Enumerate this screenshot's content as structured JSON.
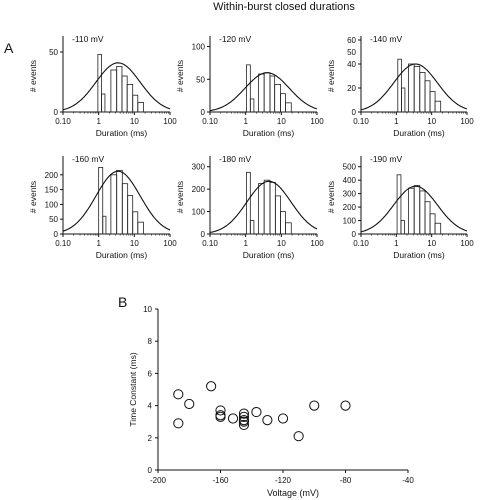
{
  "figure": {
    "title": "Within-burst closed durations"
  },
  "panel_labels": {
    "a": "A",
    "b": "B"
  },
  "chart_data": [
    {
      "type": "bar",
      "panel": "A1",
      "annotation": "-110 mV",
      "xlabel": "Duration (ms)",
      "ylabel": "# events",
      "x_scale": "log",
      "xlim": [
        0.1,
        100
      ],
      "x_ticks": [
        "0.10",
        "1",
        "10",
        "100"
      ],
      "ylim": [
        0,
        60
      ],
      "y_ticks": [
        0,
        50
      ],
      "bins": [
        [
          0.95,
          1.2,
          48
        ],
        [
          1.2,
          1.5,
          15
        ],
        [
          2.2,
          3.2,
          35
        ],
        [
          3.2,
          4.5,
          38
        ],
        [
          4.5,
          6.3,
          30
        ],
        [
          6.3,
          9,
          23
        ],
        [
          9,
          12.5,
          14
        ],
        [
          12.5,
          18,
          8
        ]
      ],
      "fit_curve": {
        "peak_x": 3.5,
        "peak_y": 41,
        "log_width": 0.62
      }
    },
    {
      "type": "bar",
      "panel": "A2",
      "annotation": "-120 mV",
      "xlabel": "Duration (ms)",
      "ylabel": "# events",
      "x_scale": "log",
      "xlim": [
        0.1,
        100
      ],
      "x_ticks": [
        "0.10",
        "1",
        "10",
        "100"
      ],
      "ylim": [
        0,
        110
      ],
      "y_ticks": [
        0,
        50,
        100
      ],
      "bins": [
        [
          1.05,
          1.35,
          72
        ],
        [
          1.35,
          1.7,
          20
        ],
        [
          2.3,
          3.3,
          58
        ],
        [
          3.3,
          4.8,
          60
        ],
        [
          4.8,
          6.5,
          55
        ],
        [
          6.5,
          9.5,
          42
        ],
        [
          9.5,
          13,
          28
        ],
        [
          13,
          19,
          14
        ]
      ],
      "fit_curve": {
        "peak_x": 4,
        "peak_y": 60,
        "log_width": 0.62
      }
    },
    {
      "type": "bar",
      "panel": "A3",
      "annotation": "-140 mV",
      "xlabel": "Duration (ms)",
      "ylabel": "# events",
      "x_scale": "log",
      "xlim": [
        0.1,
        100
      ],
      "x_ticks": [
        "0.10",
        "1",
        "10",
        "100"
      ],
      "ylim": [
        0,
        60
      ],
      "y_ticks": [
        0,
        20,
        40,
        60
      ],
      "y_tick_labels": [
        "0",
        "20",
        "40",
        "60"
      ],
      "extra_y_ticks": [
        {
          "value": 50,
          "label": "50"
        }
      ],
      "bins": [
        [
          1.1,
          1.4,
          44
        ],
        [
          1.4,
          1.75,
          20
        ],
        [
          2.2,
          3.2,
          40
        ],
        [
          3.2,
          4.6,
          38
        ],
        [
          4.6,
          6.5,
          33
        ],
        [
          6.5,
          9,
          26
        ],
        [
          9,
          12.5,
          17
        ],
        [
          12.5,
          18,
          9
        ]
      ],
      "fit_curve": {
        "peak_x": 3.5,
        "peak_y": 40,
        "log_width": 0.62
      }
    },
    {
      "type": "bar",
      "panel": "A4",
      "annotation": "-160 mV",
      "xlabel": "Duration (ms)",
      "ylabel": "# events",
      "x_scale": "log",
      "xlim": [
        0.1,
        100
      ],
      "x_ticks": [
        "0.10",
        "1",
        "10",
        "100"
      ],
      "ylim": [
        0,
        250
      ],
      "y_ticks": [
        0,
        50,
        100,
        150,
        200
      ],
      "bins": [
        [
          1,
          1.3,
          225
        ],
        [
          1.3,
          1.6,
          60
        ],
        [
          2.2,
          3.2,
          200
        ],
        [
          3.2,
          4.6,
          215
        ],
        [
          4.6,
          6.5,
          170
        ],
        [
          6.5,
          9,
          130
        ],
        [
          9,
          12.5,
          75
        ],
        [
          12.5,
          18,
          40
        ]
      ],
      "fit_curve": {
        "peak_x": 3.5,
        "peak_y": 212,
        "log_width": 0.62
      }
    },
    {
      "type": "bar",
      "panel": "A5",
      "annotation": "-180 mV",
      "xlabel": "Duration (ms)",
      "ylabel": "# events",
      "x_scale": "log",
      "xlim": [
        0.1,
        100
      ],
      "x_ticks": [
        "0.10",
        "1",
        "10",
        "100"
      ],
      "ylim": [
        0,
        330
      ],
      "y_ticks": [
        0,
        100,
        200,
        300
      ],
      "bins": [
        [
          1.05,
          1.35,
          275
        ],
        [
          1.35,
          1.7,
          60
        ],
        [
          2.3,
          3.3,
          225
        ],
        [
          3.3,
          4.8,
          240
        ],
        [
          4.8,
          6.8,
          230
        ],
        [
          6.8,
          9.5,
          170
        ],
        [
          9.5,
          13,
          100
        ],
        [
          13,
          19,
          50
        ]
      ],
      "fit_curve": {
        "peak_x": 4.5,
        "peak_y": 235,
        "log_width": 0.62
      }
    },
    {
      "type": "bar",
      "panel": "A6",
      "annotation": "-190 mV",
      "xlabel": "Duration (ms)",
      "ylabel": "# events",
      "x_scale": "log",
      "xlim": [
        0.1,
        100
      ],
      "x_ticks": [
        "0.10",
        "1",
        "10",
        "100"
      ],
      "ylim": [
        0,
        550
      ],
      "y_ticks": [
        0,
        100,
        200,
        300,
        400,
        500
      ],
      "bins": [
        [
          1.05,
          1.35,
          440
        ],
        [
          1.35,
          1.7,
          100
        ],
        [
          2.2,
          3.2,
          340
        ],
        [
          3.2,
          4.6,
          360
        ],
        [
          4.6,
          6.5,
          320
        ],
        [
          6.5,
          9,
          240
        ],
        [
          9,
          12.5,
          150
        ],
        [
          12.5,
          18,
          80
        ]
      ],
      "fit_curve": {
        "peak_x": 3.5,
        "peak_y": 355,
        "log_width": 0.62
      }
    },
    {
      "type": "scatter",
      "panel": "B",
      "xlabel": "Voltage (mV)",
      "ylabel": "Time Constant (ms)",
      "xlim": [
        -200,
        -40
      ],
      "ylim": [
        0,
        10
      ],
      "x_ticks": [
        -200,
        -160,
        -120,
        -80,
        -40
      ],
      "x_tick_labels": [
        "-200",
        "-160",
        "-120",
        "-80",
        "-40"
      ],
      "y_ticks": [
        0,
        2,
        4,
        6,
        8,
        10
      ],
      "x": [
        -187,
        -187,
        -180,
        -166,
        -160,
        -160,
        -160,
        -152,
        -145,
        -145,
        -145,
        -145,
        -145,
        -137,
        -130,
        -120,
        -110,
        -100,
        -80
      ],
      "y": [
        4.7,
        2.9,
        4.1,
        5.2,
        3.7,
        3.4,
        3.3,
        3.2,
        3.5,
        3.3,
        3.1,
        3.0,
        2.8,
        3.6,
        3.1,
        3.2,
        2.1,
        4.0,
        4.0
      ]
    }
  ]
}
